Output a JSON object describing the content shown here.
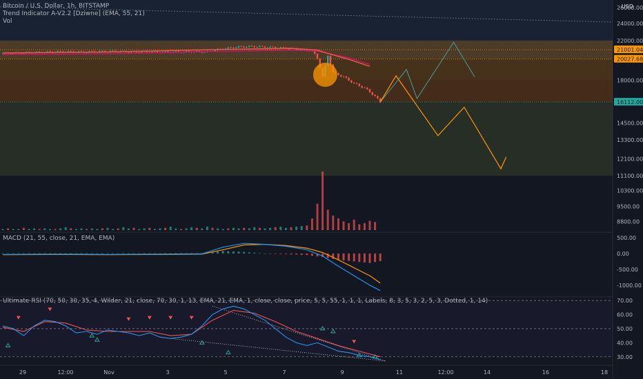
{
  "legend": {
    "symbol": "Bitcoin / U.S. Dollar, 1h, BITSTAMP",
    "indicator": "Trend Indicator A-V2.2 [Dziwne] (EMA, 55, 21)",
    "volume": "Vol"
  },
  "currency": "USD",
  "macd_legend": "MACD (21, 55, close, 21, EMA, EMA)",
  "rsi_legend": "Ultimate RSI (70, 50, 30, 35, 4, Wilder, 21, close, 70, 30, 1, 13, EMA, 21, EMA, 1, close, close, price, 5, 5, 55, 1, 1, 1, Labels, 8, 3, 5, 3, 2, 5, 3, Dotted, 1, 14)",
  "colors": {
    "background": "#131722",
    "up": "#26a69a",
    "down": "#ef5350",
    "projection_orange": "#ff9800",
    "projection_teal": "#4a9e96",
    "macd_line": "#2196f3",
    "signal_line": "#ff9800",
    "rsi_line": "#2196f3",
    "rsi_signal": "#ef5350"
  },
  "chart_data": [
    {
      "type": "candlestick",
      "pane": "price",
      "y_axis_labels": [
        "26000.00",
        "24000.00",
        "22000.00",
        "21001.04",
        "20027.68",
        "18000.00",
        "16112.00",
        "14500.00",
        "13300.00",
        "12100.00",
        "11100.00",
        "10300.00",
        "9500.00",
        "8800.00"
      ],
      "x_axis_labels": [
        "29",
        "12:00",
        "Nov",
        "3",
        "5",
        "7",
        "9",
        "11",
        "12:00",
        "14",
        "16",
        "18"
      ],
      "ylim": [
        8400,
        27000
      ],
      "log_scale": true,
      "price_levels": [
        {
          "value": 21001.04,
          "color": "#ff9800",
          "label": "21001.04"
        },
        {
          "value": 20027.68,
          "color": "#ff9800",
          "label": "20027.68"
        },
        {
          "value": 16112.0,
          "color": "#26a69a",
          "label": "16112.00"
        }
      ],
      "zones": [
        {
          "from": 18000,
          "to": 22000,
          "color": "#ff9800"
        },
        {
          "from": 16112,
          "to": 18000,
          "color": "#f57c00"
        },
        {
          "from": 11100,
          "to": 16112,
          "color": "#4d5a2a"
        }
      ],
      "close_path": [
        [
          0,
          20600
        ],
        [
          3,
          20650
        ],
        [
          6,
          20700
        ],
        [
          9,
          20750
        ],
        [
          12,
          20800
        ],
        [
          15,
          20750
        ],
        [
          18,
          20800
        ],
        [
          21,
          20820
        ],
        [
          24,
          20780
        ],
        [
          27,
          20760
        ],
        [
          30,
          20740
        ],
        [
          33,
          20750
        ],
        [
          36,
          20780
        ],
        [
          39,
          20760
        ],
        [
          40,
          20900
        ],
        [
          42,
          21100
        ],
        [
          45,
          21300
        ],
        [
          48,
          21350
        ],
        [
          51,
          21250
        ],
        [
          54,
          21150
        ],
        [
          57,
          21000
        ],
        [
          59,
          20900
        ],
        [
          60,
          20100
        ],
        [
          61,
          18300
        ],
        [
          62,
          20400
        ],
        [
          63,
          18700
        ],
        [
          65,
          18300
        ],
        [
          67,
          17700
        ],
        [
          69,
          17300
        ],
        [
          71,
          16600
        ],
        [
          72,
          16112
        ]
      ],
      "ema_fast": [
        [
          0,
          20650
        ],
        [
          20,
          20750
        ],
        [
          40,
          21000
        ],
        [
          55,
          21150
        ],
        [
          60,
          20950
        ],
        [
          63,
          20450
        ],
        [
          66,
          20000
        ],
        [
          70,
          19300
        ]
      ],
      "ema_slow": [
        [
          0,
          20500
        ],
        [
          20,
          20550
        ],
        [
          40,
          20800
        ],
        [
          55,
          20950
        ],
        [
          60,
          20850
        ],
        [
          63,
          20500
        ],
        [
          66,
          20150
        ],
        [
          70,
          19500
        ]
      ],
      "projection_orange": [
        [
          72,
          16112
        ],
        [
          75,
          18400
        ],
        [
          83,
          13600
        ],
        [
          88,
          15700
        ],
        [
          95,
          11500
        ],
        [
          96,
          12200
        ]
      ],
      "projection_teal": [
        [
          72,
          16112
        ],
        [
          77,
          19000
        ],
        [
          79,
          16400
        ],
        [
          86,
          21800
        ],
        [
          90,
          18300
        ]
      ],
      "volume": [
        2,
        3,
        2,
        2,
        4,
        2,
        3,
        2,
        3,
        2,
        2,
        3,
        5,
        3,
        2,
        3,
        2,
        3,
        2,
        3,
        4,
        2,
        3,
        5,
        3,
        4,
        2,
        3,
        4,
        2,
        3,
        4,
        6,
        3,
        2,
        3,
        5,
        4,
        3,
        6,
        4,
        3,
        2,
        3,
        4,
        3,
        4,
        3,
        5,
        4,
        3,
        4,
        5,
        6,
        4,
        5,
        6,
        7,
        8,
        20,
        45,
        100,
        35,
        25,
        20,
        15,
        12,
        18,
        10,
        12,
        16,
        14
      ]
    },
    {
      "type": "line",
      "pane": "MACD",
      "y_axis_labels": [
        "500.00",
        "0.00",
        "-500.00",
        "-1000.00"
      ],
      "ylim": [
        -1350,
        650
      ],
      "series": [
        {
          "values": [
            [
              0,
              -30
            ],
            [
              10,
              -20
            ],
            [
              20,
              -30
            ],
            [
              30,
              -20
            ],
            [
              38,
              -10
            ],
            [
              42,
              200
            ],
            [
              46,
              320
            ],
            [
              50,
              290
            ],
            [
              54,
              230
            ],
            [
              58,
              120
            ],
            [
              61,
              -80
            ],
            [
              64,
              -400
            ],
            [
              67,
              -700
            ],
            [
              70,
              -1000
            ],
            [
              72,
              -1170
            ]
          ]
        },
        {
          "values": [
            [
              0,
              -40
            ],
            [
              10,
              -30
            ],
            [
              20,
              -40
            ],
            [
              30,
              -30
            ],
            [
              38,
              -20
            ],
            [
              42,
              120
            ],
            [
              46,
              270
            ],
            [
              50,
              290
            ],
            [
              54,
              250
            ],
            [
              58,
              170
            ],
            [
              61,
              30
            ],
            [
              64,
              -200
            ],
            [
              67,
              -450
            ],
            [
              70,
              -700
            ],
            [
              72,
              -930
            ]
          ]
        }
      ]
    },
    {
      "type": "line",
      "pane": "Ultimate RSI",
      "y_axis_labels": [
        "70.00",
        "60.00",
        "50.00",
        "40.00",
        "30.00"
      ],
      "ylim": [
        25,
        72
      ],
      "series": [
        {
          "values": [
            [
              0,
              52
            ],
            [
              2,
              50
            ],
            [
              4,
              45
            ],
            [
              6,
              52
            ],
            [
              8,
              56
            ],
            [
              10,
              55
            ],
            [
              12,
              52
            ],
            [
              14,
              47
            ],
            [
              16,
              48
            ],
            [
              18,
              46
            ],
            [
              20,
              49
            ],
            [
              22,
              48
            ],
            [
              24,
              47
            ],
            [
              26,
              45
            ],
            [
              28,
              47
            ],
            [
              30,
              44
            ],
            [
              32,
              43
            ],
            [
              34,
              44
            ],
            [
              36,
              46
            ],
            [
              38,
              52
            ],
            [
              40,
              60
            ],
            [
              42,
              64
            ],
            [
              44,
              66
            ],
            [
              46,
              64
            ],
            [
              48,
              60
            ],
            [
              50,
              56
            ],
            [
              52,
              50
            ],
            [
              54,
              44
            ],
            [
              56,
              40
            ],
            [
              58,
              38
            ],
            [
              60,
              40
            ],
            [
              62,
              37
            ],
            [
              64,
              34
            ],
            [
              66,
              33
            ],
            [
              68,
              31
            ],
            [
              70,
              30
            ],
            [
              72,
              28
            ]
          ]
        },
        {
          "values": [
            [
              0,
              51
            ],
            [
              4,
              48
            ],
            [
              8,
              55
            ],
            [
              12,
              54
            ],
            [
              16,
              49
            ],
            [
              20,
              48
            ],
            [
              24,
              48
            ],
            [
              28,
              48
            ],
            [
              32,
              45
            ],
            [
              36,
              46
            ],
            [
              40,
              56
            ],
            [
              44,
              63
            ],
            [
              48,
              61
            ],
            [
              52,
              55
            ],
            [
              56,
              48
            ],
            [
              60,
              43
            ],
            [
              64,
              38
            ],
            [
              68,
              34
            ],
            [
              72,
              30
            ]
          ]
        }
      ],
      "markers_down": [
        [
          3,
          58
        ],
        [
          9,
          64
        ],
        [
          24,
          57
        ],
        [
          28,
          58
        ],
        [
          32,
          58
        ],
        [
          36,
          58
        ],
        [
          67,
          41
        ]
      ],
      "markers_up": [
        [
          1,
          38
        ],
        [
          17,
          45
        ],
        [
          18,
          42
        ],
        [
          38,
          40
        ],
        [
          43,
          33
        ],
        [
          61,
          50
        ],
        [
          63,
          48
        ],
        [
          68,
          31
        ],
        [
          71,
          30
        ]
      ]
    }
  ]
}
